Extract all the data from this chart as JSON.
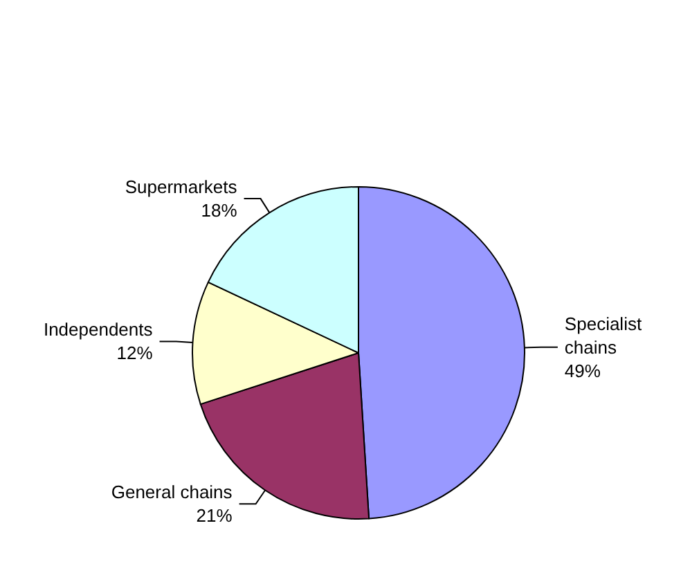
{
  "chart_data": {
    "type": "pie",
    "categories": [
      "Specialist chains",
      "General chains",
      "Independents",
      "Supermarkets"
    ],
    "values": [
      49,
      21,
      12,
      18
    ],
    "value_labels": [
      "49%",
      "21%",
      "12%",
      "18%"
    ],
    "colors": [
      "#9999ff",
      "#993366",
      "#ffffcc",
      "#ccffff"
    ],
    "legend": false
  }
}
